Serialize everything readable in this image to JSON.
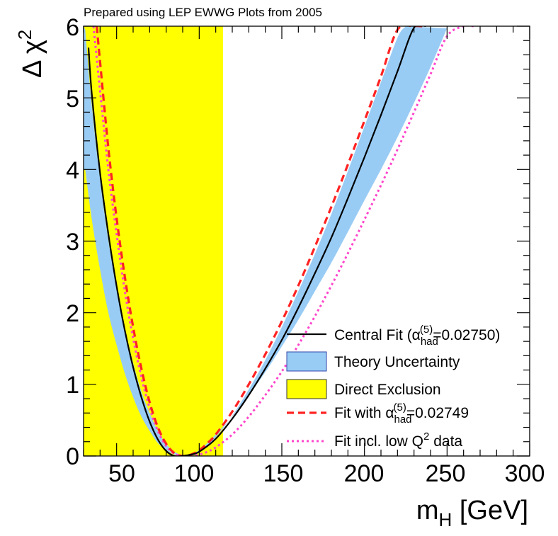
{
  "chart_data": {
    "type": "line",
    "title": "Prepared using LEP EWWG Plots from 2005",
    "xlabel": "m_H [GeV]",
    "xlabel_main": "m",
    "xlabel_sub": "H",
    "xlabel_unit": "[GeV]",
    "ylabel": "Δ χ^2",
    "ylabel_main": "Δ χ",
    "ylabel_sup": "2",
    "xlim": [
      30,
      300
    ],
    "ylim": [
      0,
      6
    ],
    "xticks": [
      "50",
      "100",
      "150",
      "200",
      "250",
      "300"
    ],
    "yticks": [
      "0",
      "1",
      "2",
      "3",
      "4",
      "5",
      "6"
    ],
    "grid": false,
    "legend_position": "bottom-right",
    "direct_exclusion": {
      "x_start": 30,
      "x_end": 114.4,
      "color": "#ffff00"
    },
    "theory_band": {
      "color": "#99ccf5",
      "lower": {
        "x": [
          31,
          35,
          40,
          45,
          50,
          55,
          60,
          65,
          70,
          75,
          80,
          85,
          90,
          95,
          100,
          105,
          110,
          120,
          130,
          140,
          150,
          160,
          170,
          180,
          190,
          200,
          210,
          220,
          225
        ],
        "y": [
          5.95,
          4.9,
          3.87,
          3.02,
          2.34,
          1.78,
          1.3,
          0.9,
          0.6,
          0.35,
          0.17,
          0.06,
          0.01,
          0.0,
          0.05,
          0.14,
          0.26,
          0.56,
          0.93,
          1.34,
          1.8,
          2.3,
          2.82,
          3.38,
          3.98,
          4.6,
          5.22,
          5.84,
          6.0
        ]
      },
      "upper": {
        "x": [
          31,
          35,
          40,
          45,
          50,
          55,
          60,
          65,
          70,
          75,
          80,
          85,
          90,
          95,
          100,
          105,
          110,
          120,
          130,
          140,
          150,
          160,
          170,
          180,
          190,
          200,
          210,
          220,
          230,
          240,
          250
        ],
        "y": [
          4.0,
          3.3,
          2.6,
          2.0,
          1.55,
          1.15,
          0.82,
          0.55,
          0.35,
          0.18,
          0.08,
          0.02,
          0.0,
          0.02,
          0.08,
          0.18,
          0.3,
          0.55,
          0.85,
          1.17,
          1.53,
          1.9,
          2.3,
          2.7,
          3.13,
          3.57,
          4.0,
          4.45,
          4.93,
          5.43,
          5.97
        ]
      }
    },
    "series": [
      {
        "name": "Central Fit (α_had^(5)=0.02750)",
        "style": "solid",
        "color": "#000000",
        "x": [
          33,
          35,
          40,
          45,
          50,
          55,
          60,
          65,
          70,
          75,
          80,
          85,
          90,
          95,
          100,
          110,
          120,
          130,
          140,
          150,
          160,
          170,
          180,
          190,
          200,
          210,
          220,
          230,
          237
        ],
        "y": [
          5.7,
          5.05,
          3.95,
          3.1,
          2.37,
          1.75,
          1.24,
          0.82,
          0.48,
          0.23,
          0.07,
          0.0,
          0.0,
          0.02,
          0.06,
          0.24,
          0.52,
          0.85,
          1.22,
          1.62,
          2.07,
          2.55,
          3.05,
          3.6,
          4.17,
          4.76,
          5.37,
          5.98,
          6.0
        ]
      },
      {
        "name": "Fit with α_had^(5)=0.02749",
        "style": "dashed",
        "color": "#ff2222",
        "x": [
          38,
          40,
          45,
          50,
          55,
          60,
          65,
          70,
          75,
          80,
          85,
          90,
          95,
          100,
          105,
          110,
          120,
          130,
          140,
          150,
          160,
          170,
          180,
          190,
          200,
          210,
          220,
          230,
          235
        ],
        "y": [
          6.0,
          5.5,
          4.3,
          3.32,
          2.5,
          1.8,
          1.22,
          0.75,
          0.4,
          0.17,
          0.04,
          0.0,
          0.02,
          0.08,
          0.18,
          0.3,
          0.62,
          1.0,
          1.42,
          1.88,
          2.38,
          2.92,
          3.48,
          4.07,
          4.68,
          5.3,
          5.95,
          6.0,
          6.0
        ]
      },
      {
        "name": "Fit incl. low Q^2 data",
        "style": "dotted",
        "color": "#ff44cc",
        "x": [
          36,
          40,
          45,
          50,
          55,
          60,
          65,
          70,
          75,
          80,
          85,
          90,
          95,
          100,
          105,
          110,
          120,
          130,
          140,
          150,
          160,
          170,
          180,
          190,
          200,
          210,
          220,
          230,
          240,
          250,
          260,
          266
        ],
        "y": [
          6.0,
          5.1,
          4.0,
          3.1,
          2.3,
          1.64,
          1.1,
          0.67,
          0.35,
          0.14,
          0.03,
          0.0,
          0.0,
          0.02,
          0.06,
          0.12,
          0.3,
          0.55,
          0.85,
          1.18,
          1.55,
          1.95,
          2.38,
          2.83,
          3.3,
          3.78,
          4.28,
          4.8,
          5.33,
          5.86,
          6.0,
          6.0
        ]
      }
    ],
    "legend": {
      "central_fit": {
        "main": "Central Fit (α",
        "sub": "had",
        "sup": "(5)",
        "tail": "=0.02750)"
      },
      "theory": "Theory Uncertainty",
      "exclusion": "Direct Exclusion",
      "fit_2749": {
        "main": "Fit with α",
        "sub": "had",
        "sup": "(5)",
        "tail": "=0.02749"
      },
      "lowq2": {
        "main": "Fit incl. low Q",
        "sup": "2",
        "tail": " data"
      }
    }
  }
}
